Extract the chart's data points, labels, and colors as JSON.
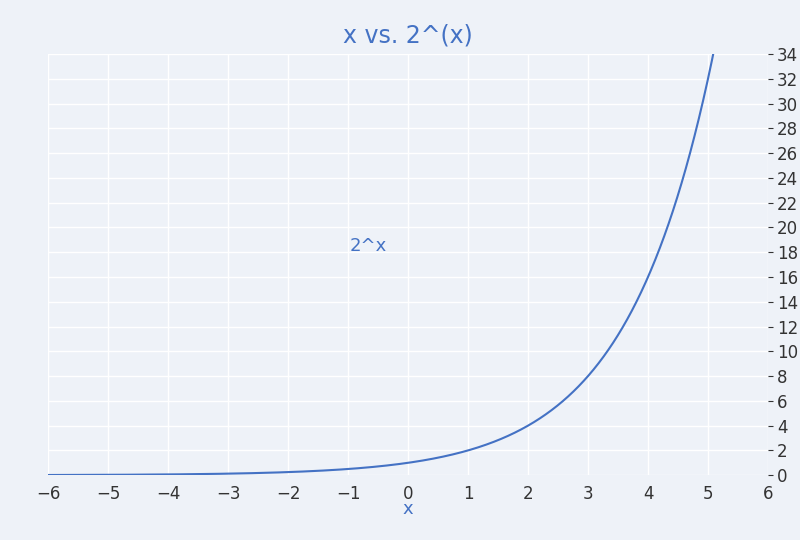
{
  "title": "x vs. 2^(x)",
  "xlabel": "x",
  "ylabel_label": "2^x",
  "xlim": [
    -6,
    6
  ],
  "ylim": [
    0,
    34
  ],
  "x_ticks": [
    -6,
    -5,
    -4,
    -3,
    -2,
    -1,
    0,
    1,
    2,
    3,
    4,
    5,
    6
  ],
  "y_ticks": [
    0,
    2,
    4,
    6,
    8,
    10,
    12,
    14,
    16,
    18,
    20,
    22,
    24,
    26,
    28,
    30,
    32,
    34
  ],
  "line_color": "#4472C4",
  "title_color": "#4472C4",
  "xlabel_color": "#4472C4",
  "ylabel_color": "#4472C4",
  "tick_color": "#333333",
  "background_color": "#EEF2F8",
  "grid_color": "#ffffff",
  "title_fontsize": 17,
  "label_fontsize": 13,
  "tick_fontsize": 12,
  "line_width": 1.5,
  "ylabel_x_data": -0.35,
  "ylabel_y_data": 18.5
}
